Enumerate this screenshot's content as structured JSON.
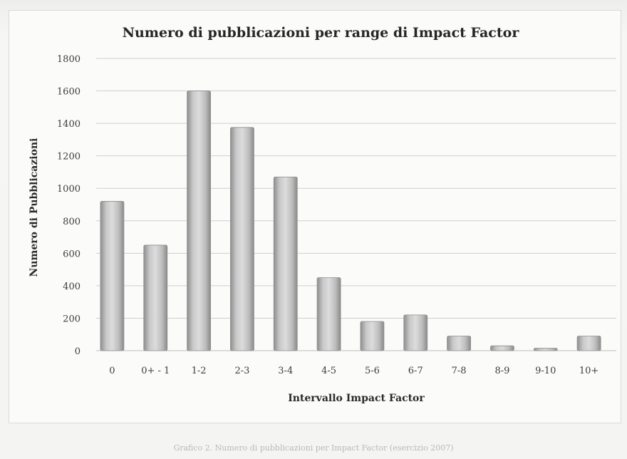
{
  "chart_data": {
    "type": "bar",
    "title": "Numero di pubblicazioni per range di Impact Factor",
    "xlabel": "Intervallo Impact Factor",
    "ylabel": "Numero di Pubblicazioni",
    "categories": [
      "0",
      "0+ - 1",
      "1-2",
      "2-3",
      "3-4",
      "4-5",
      "5-6",
      "6-7",
      "7-8",
      "8-9",
      "9-10",
      "10+"
    ],
    "values": [
      920,
      650,
      1600,
      1375,
      1070,
      450,
      180,
      220,
      90,
      30,
      15,
      90
    ],
    "ylim": [
      0,
      1800
    ],
    "yticks": [
      0,
      200,
      400,
      600,
      800,
      1000,
      1200,
      1400,
      1600,
      1800
    ],
    "grid": true,
    "legend": "none",
    "colors": {
      "bar": "#b8b8b8",
      "bar_edge": "#8f8f8f",
      "grid": "#cfcfcf",
      "text": "#3c3c3c",
      "title": "#262626"
    }
  },
  "caption": "Grafico 2. Numero di pubblicazioni per Impact Factor (esercizio 2007)"
}
